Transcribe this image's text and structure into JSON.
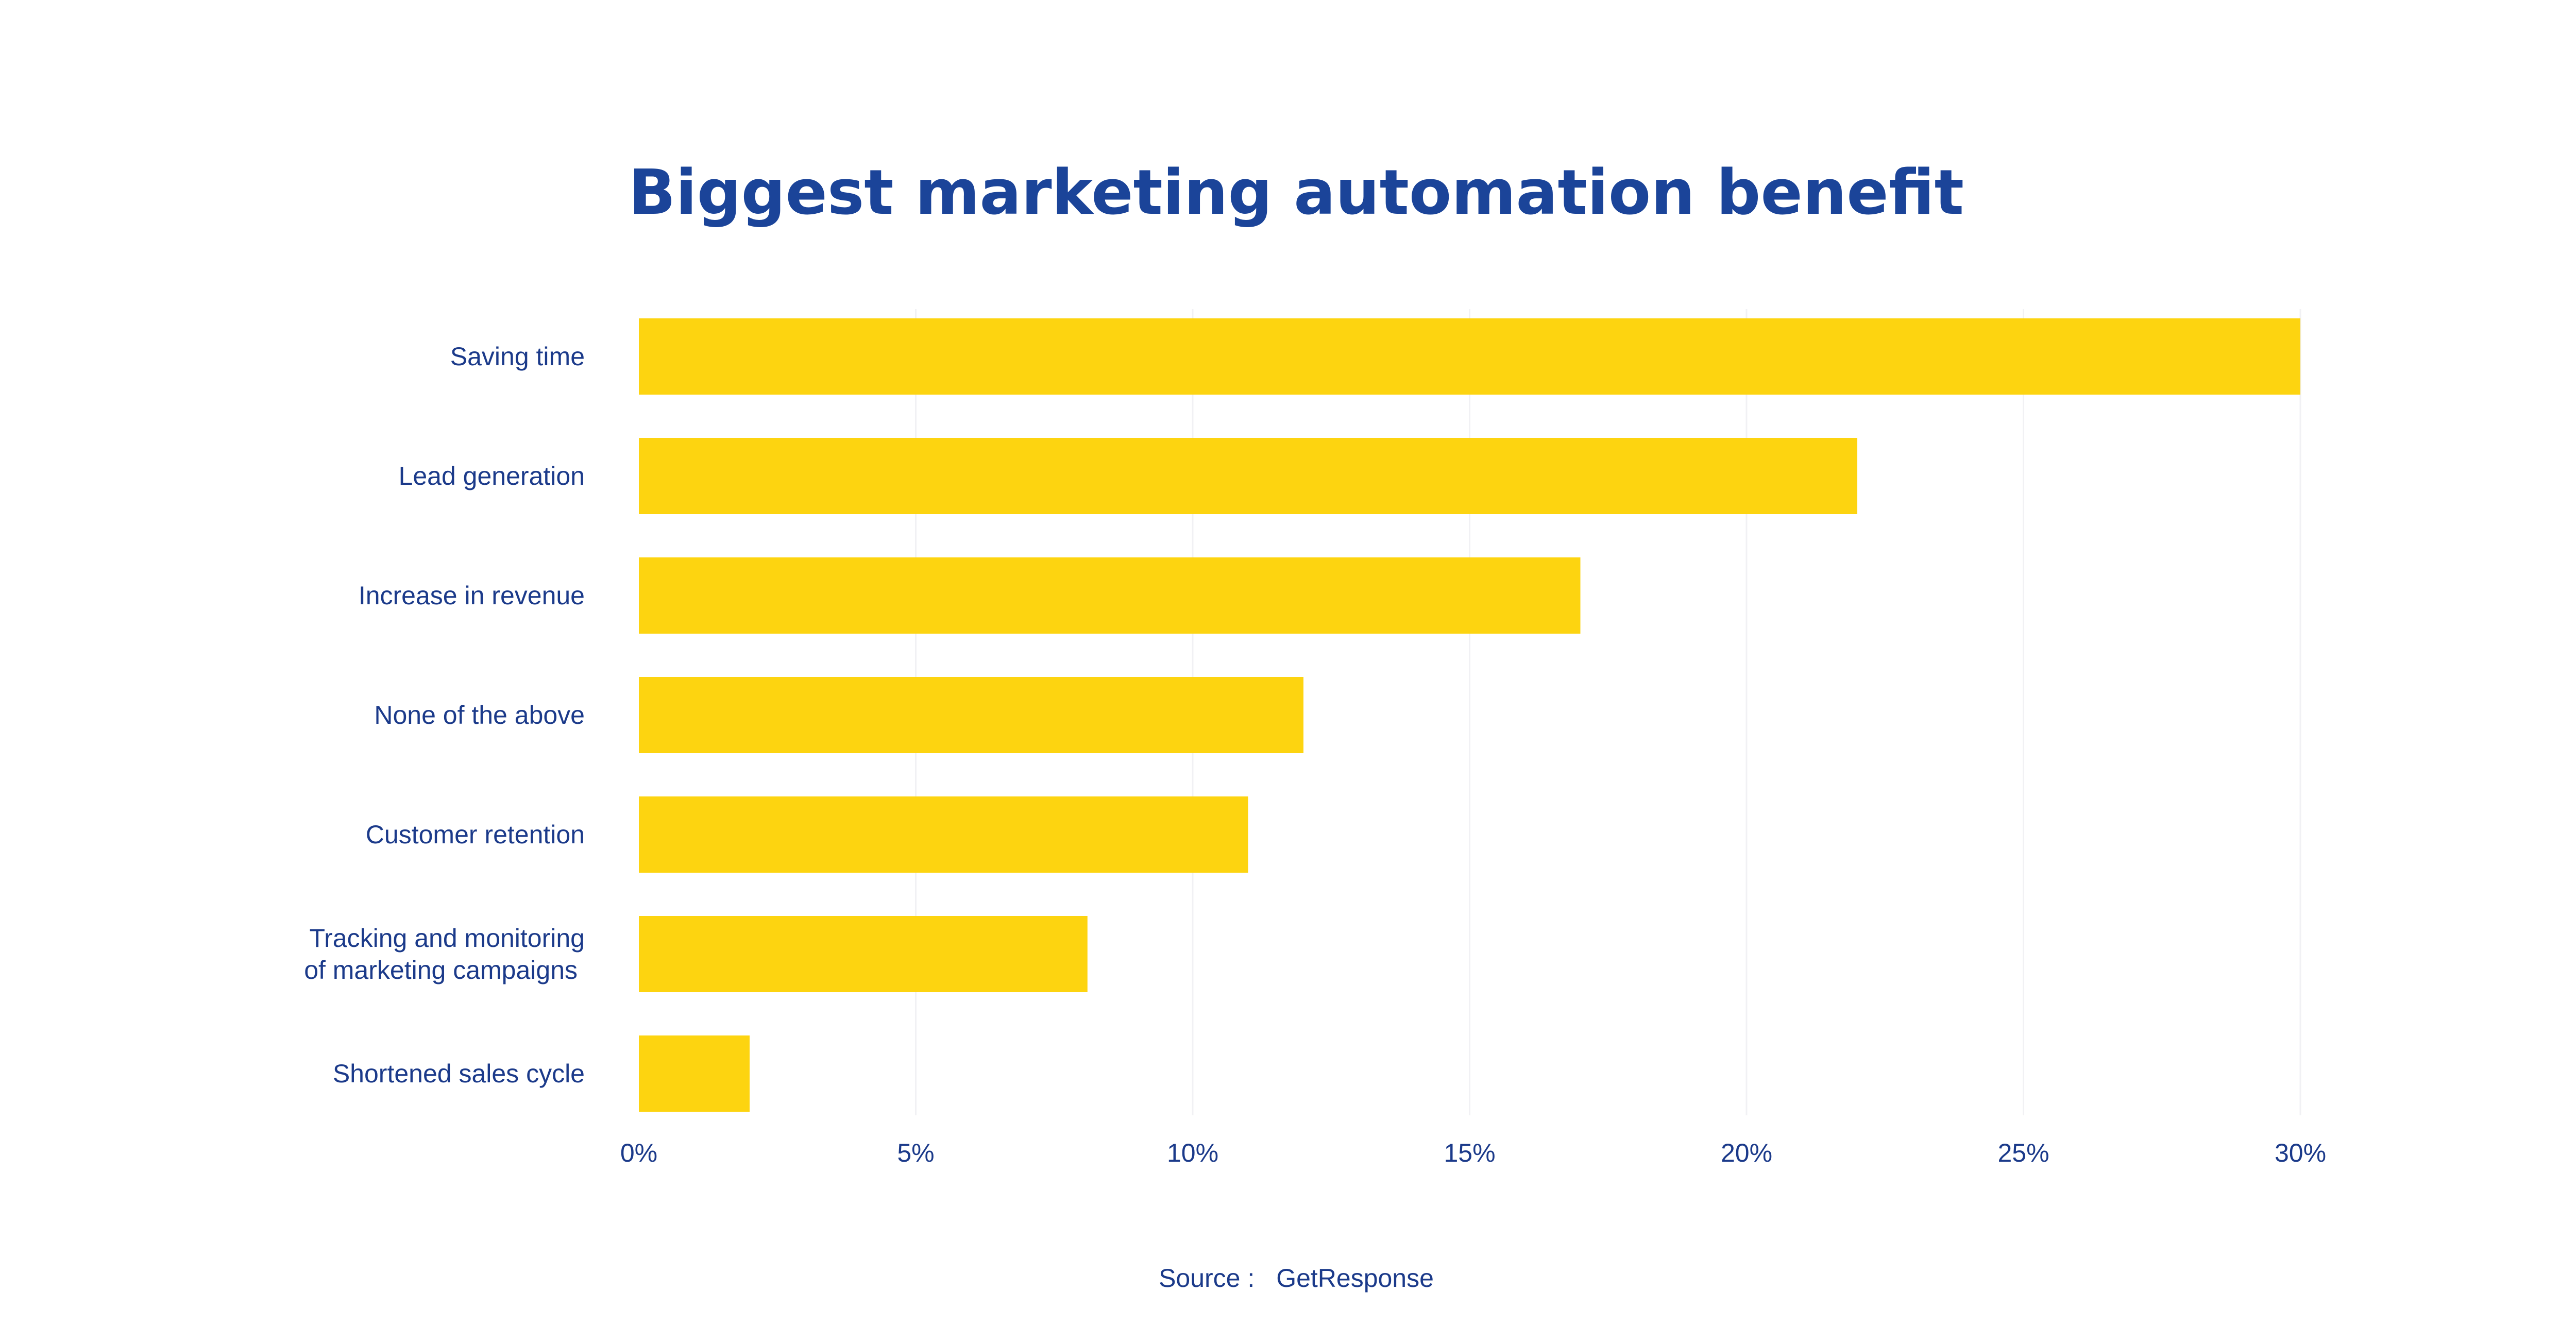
{
  "colors": {
    "title": "#1b4499",
    "text": "#1b3a8a",
    "bar": "#fdd410",
    "grid": "#f1f1f4",
    "background": "#ffffff"
  },
  "chart_data": {
    "type": "bar",
    "orientation": "horizontal",
    "title": "Biggest marketing automation benefit",
    "xlabel": "",
    "ylabel": "",
    "categories": [
      [
        "Saving time"
      ],
      [
        "Lead generation"
      ],
      [
        "Increase in revenue"
      ],
      [
        "None of the above"
      ],
      [
        "Customer retention"
      ],
      [
        "Tracking and monitoring",
        "of marketing campaigns"
      ],
      [
        "Shortened sales cycle"
      ]
    ],
    "values": [
      30,
      22,
      17,
      12,
      11,
      8.1,
      2
    ],
    "unit": "%",
    "xlim": [
      0,
      30
    ],
    "ticks": [
      0,
      5,
      10,
      15,
      20,
      25,
      30
    ],
    "tick_labels": [
      "0%",
      "5%",
      "10%",
      "15%",
      "20%",
      "25%",
      "30%"
    ],
    "grid": true,
    "legend": "none"
  },
  "source": {
    "label": "Source :",
    "value": "GetResponse"
  }
}
